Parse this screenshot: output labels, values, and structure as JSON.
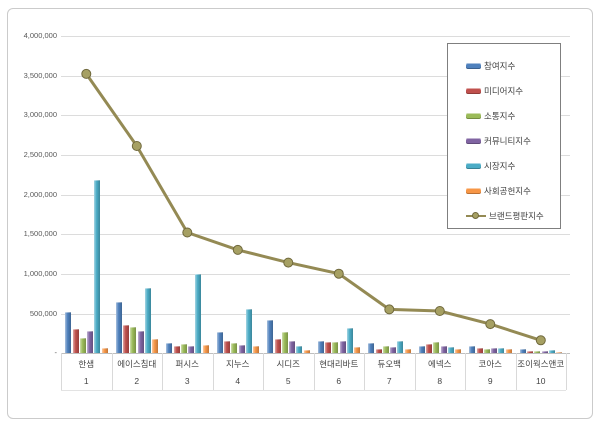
{
  "style": {
    "figure_border_color": "#cbcbcb",
    "gridline_color": "#dcdcdc",
    "axis_text_color": "#595959",
    "label_text_color": "#444444",
    "legend_border_color": "#7f7f7f"
  },
  "chart_data": {
    "type": "bar",
    "subtype": "grouped-bars-with-line-overlay",
    "title": "",
    "xlabel": "",
    "ylabel": "",
    "ylim": [
      0,
      4000000
    ],
    "y_step": 500000,
    "grid": true,
    "legend_position": "inside-right",
    "y_tick_labels": [
      "4,000,000",
      "3,500,000",
      "3,000,000",
      "2,500,000",
      "2,000,000",
      "1,500,000",
      "1,000,000",
      "500,000",
      "-"
    ],
    "categories": [
      "한샘",
      "에이스침대",
      "퍼시스",
      "지누스",
      "시디즈",
      "현대리바트",
      "듀오백",
      "에넥스",
      "코아스",
      "조이웍스앤코"
    ],
    "ranks": [
      "1",
      "2",
      "3",
      "4",
      "5",
      "6",
      "7",
      "8",
      "9",
      "10"
    ],
    "series": [
      {
        "name": "참여지수",
        "chart_type": "bar",
        "color": "#4F81BD",
        "values": [
          520000,
          650000,
          125000,
          270000,
          415000,
          150000,
          130000,
          85000,
          85000,
          45000
        ]
      },
      {
        "name": "미디어지수",
        "chart_type": "bar",
        "color": "#C0504D",
        "values": [
          300000,
          350000,
          85000,
          150000,
          180000,
          145000,
          55000,
          110000,
          60000,
          25000
        ]
      },
      {
        "name": "소통지수",
        "chart_type": "bar",
        "color": "#9BBB59",
        "values": [
          185000,
          330000,
          110000,
          125000,
          265000,
          140000,
          90000,
          140000,
          55000,
          20000
        ]
      },
      {
        "name": "커뮤니티지수",
        "chart_type": "bar",
        "color": "#8064A2",
        "values": [
          280000,
          280000,
          95000,
          100000,
          155000,
          150000,
          80000,
          90000,
          60000,
          20000
        ]
      },
      {
        "name": "시장지수",
        "chart_type": "bar",
        "color": "#4BACC6",
        "values": [
          2180000,
          820000,
          1000000,
          550000,
          90000,
          320000,
          150000,
          70000,
          60000,
          40000
        ]
      },
      {
        "name": "사회공헌지수",
        "chart_type": "bar",
        "color": "#F79646",
        "values": [
          65000,
          180000,
          105000,
          90000,
          35000,
          80000,
          55000,
          55000,
          45000,
          10000
        ]
      },
      {
        "name": "브랜드평판지수",
        "chart_type": "line",
        "color": "#948A54",
        "marker": "circle",
        "marker_fill": "#A6A063",
        "marker_stroke": "#6F683C",
        "values": [
          3520000,
          2610000,
          1520000,
          1300000,
          1140000,
          1000000,
          550000,
          530000,
          365000,
          160000
        ]
      }
    ]
  }
}
